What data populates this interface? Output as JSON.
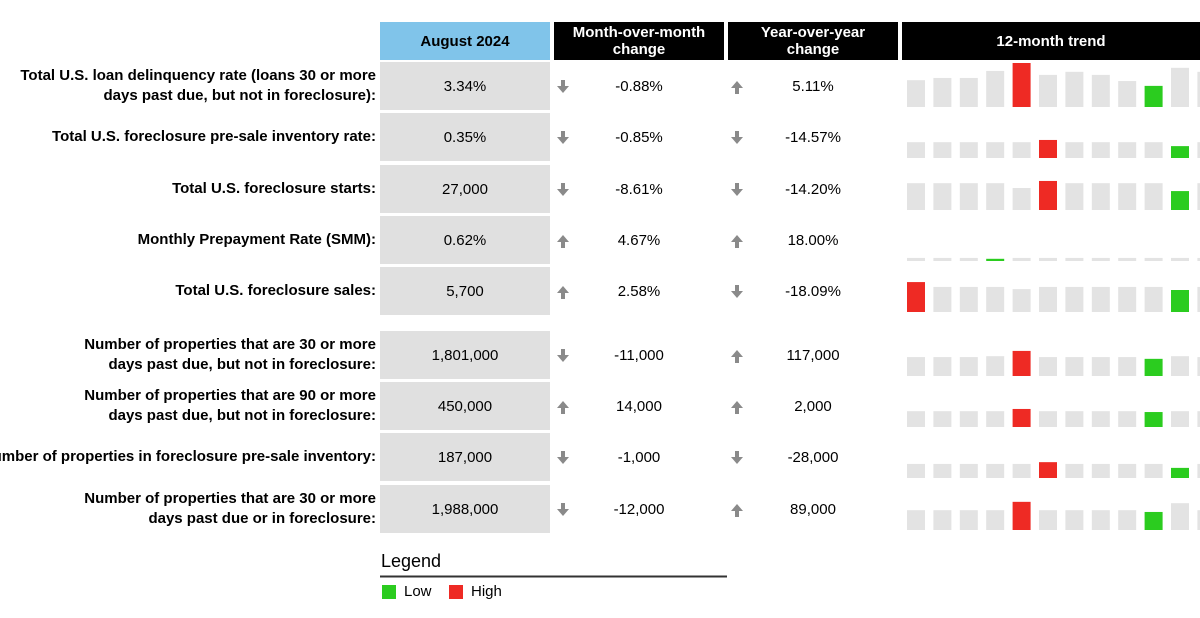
{
  "header": {
    "current": "August 2024",
    "mom": [
      "Month-over-month",
      "change"
    ],
    "yoy": [
      "Year-over-year",
      "change"
    ],
    "trend": "12-month trend"
  },
  "table": {
    "rows": [
      {
        "label": [
          "Total U.S. loan delinquency rate (loans 30 or more",
          "days past due, but not in foreclosure):"
        ],
        "value": "3.34%",
        "mom": "-0.88%",
        "mom_direction": "down",
        "yoy": "5.11%",
        "yoy_direction": "up",
        "trend": [
          61,
          66,
          66,
          82,
          100,
          73,
          80,
          73,
          59,
          48,
          89,
          80
        ]
      },
      {
        "label": [
          "Total U.S. foreclosure pre-sale inventory rate:"
        ],
        "value": "0.35%",
        "mom": "-0.85%",
        "mom_direction": "down",
        "yoy": "-14.57%",
        "yoy_direction": "down",
        "trend": [
          36,
          36,
          36,
          36,
          36,
          41,
          36,
          36,
          36,
          36,
          27,
          36
        ]
      },
      {
        "label": [
          "Total U.S. foreclosure starts:"
        ],
        "value": "27,000",
        "mom": "-8.61%",
        "mom_direction": "down",
        "yoy": "-14.20%",
        "yoy_direction": "down",
        "trend": [
          61,
          61,
          61,
          61,
          50,
          66,
          61,
          61,
          61,
          61,
          43,
          61
        ]
      },
      {
        "label": [
          "Monthly Prepayment Rate (SMM):"
        ],
        "value": "0.62%",
        "mom": "4.67%",
        "mom_direction": "up",
        "yoy": "18.00%",
        "yoy_direction": "up",
        "trend": [
          7,
          7,
          7,
          5,
          7,
          7,
          7,
          7,
          7,
          7,
          7,
          7
        ]
      },
      {
        "label": [
          "Total U.S. foreclosure sales:"
        ],
        "value": "5,700",
        "mom": "2.58%",
        "mom_direction": "up",
        "yoy": "-18.09%",
        "yoy_direction": "down",
        "trend": [
          68,
          57,
          57,
          57,
          52,
          57,
          57,
          57,
          57,
          57,
          50,
          57
        ]
      },
      {
        "label": [
          "Number of properties that are 30 or more",
          "days past due, but not in foreclosure:"
        ],
        "value": "1,801,000",
        "mom": "-11,000",
        "mom_direction": "down",
        "yoy": "117,000",
        "yoy_direction": "up",
        "trend": [
          43,
          43,
          43,
          45,
          57,
          43,
          43,
          43,
          43,
          39,
          45,
          43
        ]
      },
      {
        "label": [
          "Number of properties that are 90 or more",
          "days past due, but not in foreclosure:"
        ],
        "value": "450,000",
        "mom": "14,000",
        "mom_direction": "up",
        "yoy": "2,000",
        "yoy_direction": "up",
        "trend": [
          36,
          36,
          36,
          36,
          41,
          36,
          36,
          36,
          36,
          34,
          36,
          36
        ]
      },
      {
        "label": [
          "Number of properties in foreclosure pre-sale inventory:"
        ],
        "value": "187,000",
        "mom": "-1,000",
        "mom_direction": "down",
        "yoy": "-28,000",
        "yoy_direction": "down",
        "trend": [
          32,
          32,
          32,
          32,
          32,
          36,
          32,
          32,
          32,
          32,
          23,
          32
        ]
      },
      {
        "label": [
          "Number of properties that are 30 or more",
          "days past due or in foreclosure:"
        ],
        "value": "1,988,000",
        "mom": "-12,000",
        "mom_direction": "down",
        "yoy": "89,000",
        "yoy_direction": "up",
        "trend": [
          45,
          45,
          45,
          45,
          64,
          45,
          45,
          45,
          45,
          41,
          61,
          45
        ]
      }
    ]
  },
  "legend": {
    "title": "Legend",
    "items": [
      {
        "label": "Low",
        "color": "#2bcc1f"
      },
      {
        "label": "High",
        "color": "#ee2a24"
      }
    ]
  }
}
